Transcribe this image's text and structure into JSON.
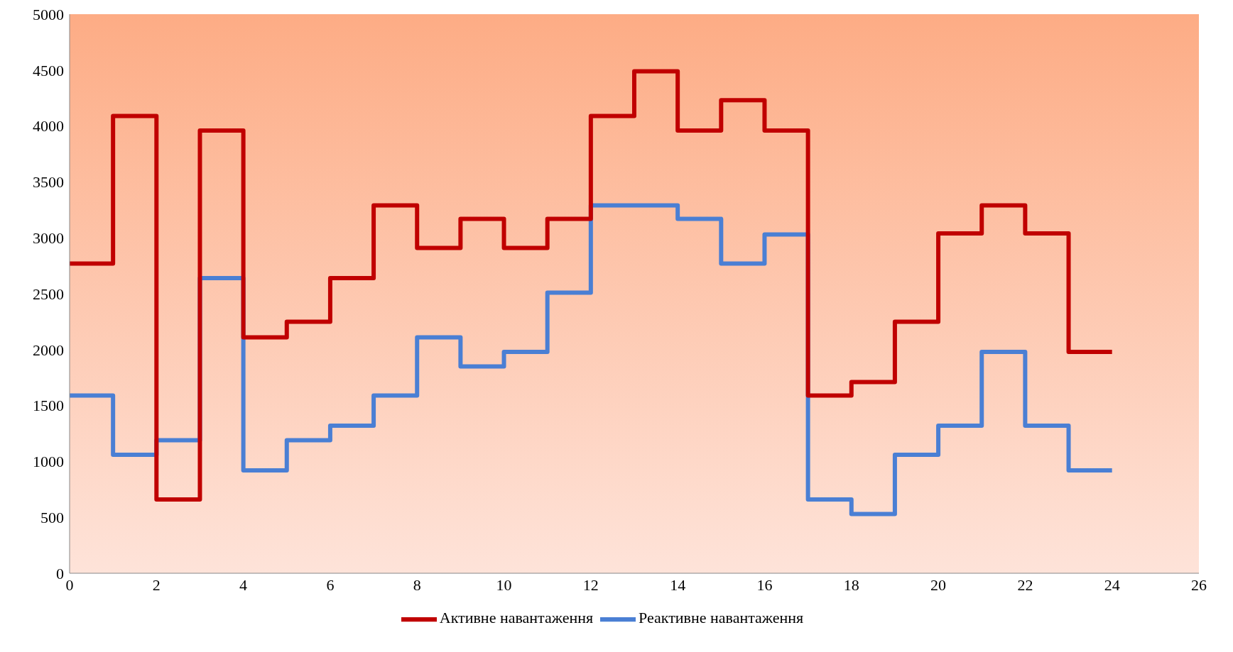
{
  "chart_data": {
    "type": "step",
    "x": [
      0,
      1,
      2,
      3,
      4,
      5,
      6,
      7,
      8,
      9,
      10,
      11,
      12,
      13,
      14,
      15,
      16,
      17,
      18,
      19,
      20,
      21,
      22,
      23,
      24
    ],
    "series": [
      {
        "name": "Реактивне навантаження",
        "color": "#4a7fd4",
        "values": [
          1590,
          1060,
          1190,
          2640,
          920,
          1190,
          1320,
          1590,
          2110,
          1850,
          1980,
          2510,
          3290,
          3290,
          3170,
          2770,
          3030,
          660,
          530,
          1060,
          1320,
          1980,
          1320,
          920,
          920
        ]
      },
      {
        "name": "Активне навантаження",
        "color": "#c00000",
        "values": [
          2770,
          4090,
          660,
          3960,
          2110,
          2250,
          2640,
          3290,
          2910,
          3170,
          2910,
          3170,
          4090,
          4490,
          3960,
          4230,
          3960,
          1590,
          1710,
          2250,
          3040,
          3290,
          3040,
          1980,
          1980
        ]
      }
    ],
    "xlim": [
      0,
      26
    ],
    "xticks": [
      0,
      2,
      4,
      6,
      8,
      10,
      12,
      14,
      16,
      18,
      20,
      22,
      24,
      26
    ],
    "ylim": [
      0,
      5000
    ],
    "yticks": [
      0,
      500,
      1000,
      1500,
      2000,
      2500,
      3000,
      3500,
      4000,
      4500,
      5000
    ],
    "grid": false,
    "legend": "bottom",
    "marker": "none",
    "line_style": "solid"
  }
}
